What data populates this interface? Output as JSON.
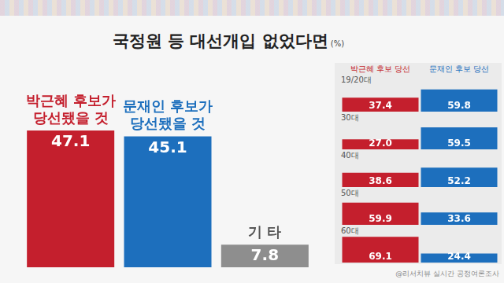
{
  "chart_data": [
    {
      "type": "bar",
      "title": "국정원 등 대선개입 없었다면",
      "subtitle": "(%)",
      "categories": [
        [
          "박근혜 후보가",
          "당선됐을 것"
        ],
        [
          "문재인 후보가",
          "당선됐을 것"
        ],
        "기 타"
      ],
      "values": [
        47.1,
        45.1,
        7.8
      ],
      "colors": [
        "#c41f2d",
        "#1d6fbd",
        "#8e8e8e"
      ],
      "ylim": [
        0,
        65
      ],
      "data_labels": true,
      "tick_labels": false
    },
    {
      "type": "bar",
      "categories": [
        "19/20대",
        "30대",
        "40대",
        "50대",
        "60대"
      ],
      "series": [
        {
          "name": "박근혜 후보 당선",
          "color": "#c41f2d",
          "values": [
            37.4,
            27.0,
            38.6,
            59.9,
            69.1
          ],
          "value_labels": [
            "37.4",
            "27.0",
            "38.6",
            "59.9",
            "69.1"
          ]
        },
        {
          "name": "문재인 후보 당선",
          "color": "#1d6fbd",
          "values": [
            59.8,
            59.5,
            52.2,
            33.6,
            24.4
          ]
        }
      ],
      "ylim": [
        0,
        72
      ],
      "data_labels": true,
      "tick_labels": false
    }
  ],
  "footer": "@리서치뷰 실시간 공정여론조사"
}
